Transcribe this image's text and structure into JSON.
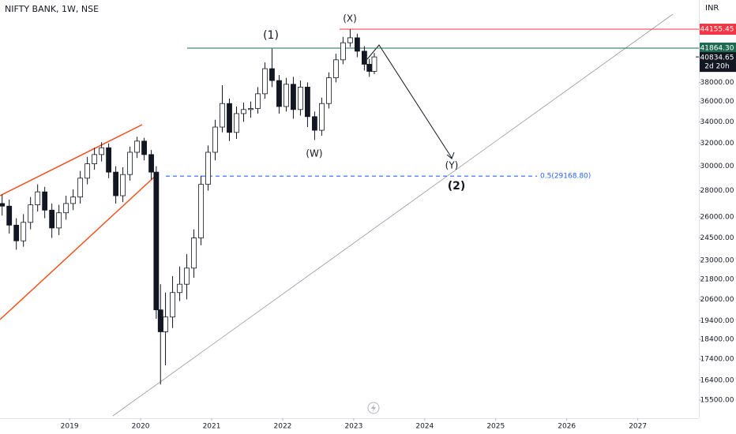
{
  "chart_data": {
    "type": "candlestick",
    "title": "NIFTY BANK, 1W, NSE",
    "currency": "INR",
    "log": true,
    "grid": false,
    "up_color": "#ffffff",
    "down_color": "#131722",
    "xlim": [
      2018.02,
      2027.86
    ],
    "ylim": [
      14730,
      47950
    ],
    "xticks": [
      2019,
      2020,
      2021,
      2022,
      2023,
      2024,
      2025,
      2026,
      2027
    ],
    "yticks": [
      {
        "value": 15500,
        "label": "15500.00"
      },
      {
        "value": 16400,
        "label": "16400.00"
      },
      {
        "value": 17400,
        "label": "17400.00"
      },
      {
        "value": 18400,
        "label": "18400.00"
      },
      {
        "value": 19400,
        "label": "19400.00"
      },
      {
        "value": 20600,
        "label": "20600.00"
      },
      {
        "value": 21800,
        "label": "21800.00"
      },
      {
        "value": 23000,
        "label": "23000.00"
      },
      {
        "value": 24500,
        "label": "24500.00"
      },
      {
        "value": 26000,
        "label": "26000.00"
      },
      {
        "value": 28000,
        "label": "28000.00"
      },
      {
        "value": 30000,
        "label": "30000.00"
      },
      {
        "value": 32000,
        "label": "32000.00"
      },
      {
        "value": 34000,
        "label": "34000.00"
      },
      {
        "value": 36000,
        "label": "36000.00"
      },
      {
        "value": 38000,
        "label": "38000.00"
      }
    ],
    "x": [
      2018.05,
      2018.15,
      2018.25,
      2018.35,
      2018.45,
      2018.55,
      2018.65,
      2018.75,
      2018.85,
      2018.95,
      2019.05,
      2019.15,
      2019.25,
      2019.35,
      2019.45,
      2019.55,
      2019.65,
      2019.75,
      2019.85,
      2019.95,
      2020.05,
      2020.15,
      2020.22,
      2020.28,
      2020.35,
      2020.45,
      2020.55,
      2020.65,
      2020.75,
      2020.85,
      2020.95,
      2021.05,
      2021.15,
      2021.25,
      2021.35,
      2021.45,
      2021.55,
      2021.65,
      2021.75,
      2021.85,
      2021.95,
      2022.05,
      2022.15,
      2022.25,
      2022.35,
      2022.45,
      2022.55,
      2022.65,
      2022.75,
      2022.85,
      2022.95,
      2023.05,
      2023.15,
      2023.22,
      2023.29
    ],
    "open": [
      27000,
      26800,
      25400,
      24300,
      25600,
      26900,
      27900,
      26500,
      25200,
      26300,
      27000,
      27500,
      29000,
      30200,
      31000,
      31600,
      29500,
      27600,
      29300,
      31200,
      32200,
      31000,
      29500,
      20000,
      18800,
      19600,
      21000,
      21500,
      22500,
      24500,
      28500,
      31200,
      33500,
      35800,
      33000,
      34800,
      35200,
      35300,
      36800,
      39500,
      38200,
      35500,
      37800,
      35200,
      37500,
      34500,
      33200,
      35800,
      38500,
      40500,
      42500,
      43100,
      41500,
      40000,
      39200
    ],
    "high": [
      27700,
      27300,
      25900,
      26200,
      27500,
      28500,
      28300,
      27000,
      26900,
      27600,
      28100,
      29600,
      30800,
      31600,
      32100,
      32000,
      30000,
      29900,
      31700,
      32600,
      32500,
      31400,
      30000,
      21500,
      21000,
      22000,
      22600,
      23400,
      25100,
      29200,
      31800,
      34200,
      37700,
      36300,
      35500,
      35900,
      36000,
      37500,
      40200,
      41800,
      38800,
      38500,
      38600,
      38200,
      38000,
      35000,
      36400,
      39100,
      41200,
      43200,
      44150,
      43600,
      42100,
      40600,
      41300
    ],
    "low": [
      26100,
      24800,
      23700,
      23900,
      25100,
      26400,
      25900,
      24500,
      24700,
      25800,
      26500,
      27000,
      28500,
      29700,
      30400,
      29000,
      27000,
      27100,
      28800,
      30700,
      30500,
      28900,
      19500,
      16200,
      17100,
      19000,
      20500,
      20600,
      21900,
      24000,
      28000,
      30500,
      33000,
      32200,
      32400,
      34000,
      34400,
      34800,
      36300,
      37500,
      34800,
      35000,
      34300,
      34600,
      33500,
      32300,
      32700,
      35300,
      38000,
      40000,
      42000,
      40800,
      39300,
      38600,
      38900
    ],
    "close": [
      26800,
      25400,
      24300,
      25600,
      26900,
      27900,
      26500,
      25200,
      26300,
      27000,
      27500,
      29000,
      30200,
      31000,
      31600,
      29500,
      27600,
      29300,
      31200,
      32200,
      31000,
      29500,
      20000,
      18800,
      19600,
      21000,
      21500,
      22500,
      24500,
      28500,
      31200,
      33500,
      35800,
      33000,
      34800,
      35200,
      35300,
      36800,
      39500,
      38200,
      35500,
      37800,
      35200,
      37500,
      34500,
      33200,
      35800,
      38500,
      40500,
      42500,
      43100,
      41500,
      40000,
      39200,
      40834.65
    ],
    "levels": [
      {
        "value": 44155.45,
        "color": "#f23645"
      },
      {
        "value": 41864.3,
        "label": "41864.30",
        "color": "#1e6b52"
      }
    ],
    "last_price": {
      "value": 40834.65,
      "label": "40834.65",
      "countdown": "2d 20h"
    },
    "fib_level": {
      "value": 29168.8,
      "label": "0.5(29168.80)",
      "color": "#2962ff"
    },
    "wave_labels": [
      "(1)",
      "(X)",
      "(W)",
      "(Y)",
      "(2)"
    ]
  }
}
